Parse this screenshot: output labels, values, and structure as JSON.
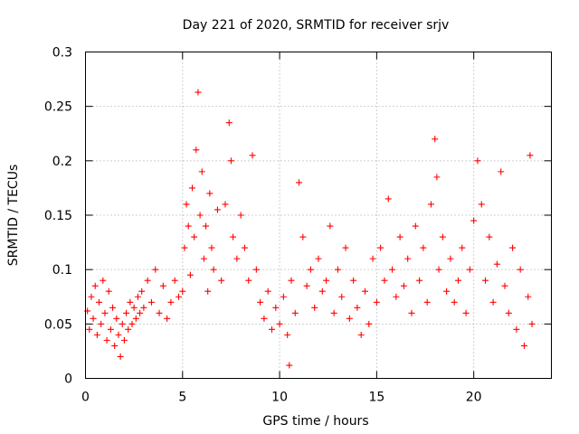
{
  "chart_data": {
    "type": "scatter",
    "title": "Day 221 of 2020, SRMTID for receiver srjv",
    "xlabel": "GPS time / hours",
    "ylabel": "SRMTID / TECUs",
    "xlim": [
      0,
      24
    ],
    "ylim": [
      0,
      0.3
    ],
    "x_ticks": [
      0,
      5,
      10,
      15,
      20
    ],
    "y_ticks": [
      0,
      0.05,
      0.1,
      0.15,
      0.2,
      0.25,
      0.3
    ],
    "x_tick_labels": [
      "0",
      "5",
      "10",
      "15",
      "20"
    ],
    "y_tick_labels": [
      "0",
      "0.05",
      "0.1",
      "0.15",
      "0.2",
      "0.25",
      "0.3"
    ],
    "grid": true,
    "legend": false,
    "marker": "plus",
    "color": "#ff0000",
    "series": [
      {
        "points": [
          [
            0.1,
            0.062
          ],
          [
            0.2,
            0.045
          ],
          [
            0.3,
            0.075
          ],
          [
            0.4,
            0.055
          ],
          [
            0.5,
            0.085
          ],
          [
            0.6,
            0.04
          ],
          [
            0.7,
            0.07
          ],
          [
            0.8,
            0.05
          ],
          [
            0.9,
            0.09
          ],
          [
            1.0,
            0.06
          ],
          [
            1.1,
            0.035
          ],
          [
            1.2,
            0.08
          ],
          [
            1.3,
            0.045
          ],
          [
            1.4,
            0.065
          ],
          [
            1.5,
            0.03
          ],
          [
            1.6,
            0.055
          ],
          [
            1.7,
            0.04
          ],
          [
            1.8,
            0.02
          ],
          [
            1.9,
            0.05
          ],
          [
            2.0,
            0.035
          ],
          [
            2.1,
            0.06
          ],
          [
            2.2,
            0.045
          ],
          [
            2.3,
            0.07
          ],
          [
            2.4,
            0.05
          ],
          [
            2.5,
            0.065
          ],
          [
            2.6,
            0.055
          ],
          [
            2.7,
            0.075
          ],
          [
            2.8,
            0.06
          ],
          [
            2.9,
            0.08
          ],
          [
            3.0,
            0.065
          ],
          [
            3.2,
            0.09
          ],
          [
            3.4,
            0.07
          ],
          [
            3.6,
            0.1
          ],
          [
            3.8,
            0.06
          ],
          [
            4.0,
            0.085
          ],
          [
            4.2,
            0.055
          ],
          [
            4.4,
            0.07
          ],
          [
            4.6,
            0.09
          ],
          [
            4.8,
            0.075
          ],
          [
            5.0,
            0.08
          ],
          [
            5.1,
            0.12
          ],
          [
            5.2,
            0.16
          ],
          [
            5.3,
            0.14
          ],
          [
            5.4,
            0.095
          ],
          [
            5.5,
            0.175
          ],
          [
            5.6,
            0.13
          ],
          [
            5.7,
            0.21
          ],
          [
            5.8,
            0.263
          ],
          [
            5.9,
            0.15
          ],
          [
            6.0,
            0.19
          ],
          [
            6.1,
            0.11
          ],
          [
            6.2,
            0.14
          ],
          [
            6.3,
            0.08
          ],
          [
            6.4,
            0.17
          ],
          [
            6.5,
            0.12
          ],
          [
            6.6,
            0.1
          ],
          [
            6.8,
            0.155
          ],
          [
            7.0,
            0.09
          ],
          [
            7.2,
            0.16
          ],
          [
            7.4,
            0.235
          ],
          [
            7.5,
            0.2
          ],
          [
            7.6,
            0.13
          ],
          [
            7.8,
            0.11
          ],
          [
            8.0,
            0.15
          ],
          [
            8.2,
            0.12
          ],
          [
            8.4,
            0.09
          ],
          [
            8.6,
            0.205
          ],
          [
            8.8,
            0.1
          ],
          [
            9.0,
            0.07
          ],
          [
            9.2,
            0.055
          ],
          [
            9.4,
            0.08
          ],
          [
            9.6,
            0.045
          ],
          [
            9.8,
            0.065
          ],
          [
            10.0,
            0.05
          ],
          [
            10.2,
            0.075
          ],
          [
            10.4,
            0.04
          ],
          [
            10.5,
            0.012
          ],
          [
            10.6,
            0.09
          ],
          [
            10.8,
            0.06
          ],
          [
            11.0,
            0.18
          ],
          [
            11.2,
            0.13
          ],
          [
            11.4,
            0.085
          ],
          [
            11.6,
            0.1
          ],
          [
            11.8,
            0.065
          ],
          [
            12.0,
            0.11
          ],
          [
            12.2,
            0.08
          ],
          [
            12.4,
            0.09
          ],
          [
            12.6,
            0.14
          ],
          [
            12.8,
            0.06
          ],
          [
            13.0,
            0.1
          ],
          [
            13.2,
            0.075
          ],
          [
            13.4,
            0.12
          ],
          [
            13.6,
            0.055
          ],
          [
            13.8,
            0.09
          ],
          [
            14.0,
            0.065
          ],
          [
            14.2,
            0.04
          ],
          [
            14.4,
            0.08
          ],
          [
            14.6,
            0.05
          ],
          [
            14.8,
            0.11
          ],
          [
            15.0,
            0.07
          ],
          [
            15.2,
            0.12
          ],
          [
            15.4,
            0.09
          ],
          [
            15.6,
            0.165
          ],
          [
            15.8,
            0.1
          ],
          [
            16.0,
            0.075
          ],
          [
            16.2,
            0.13
          ],
          [
            16.4,
            0.085
          ],
          [
            16.6,
            0.11
          ],
          [
            16.8,
            0.06
          ],
          [
            17.0,
            0.14
          ],
          [
            17.2,
            0.09
          ],
          [
            17.4,
            0.12
          ],
          [
            17.6,
            0.07
          ],
          [
            17.8,
            0.16
          ],
          [
            18.0,
            0.22
          ],
          [
            18.1,
            0.185
          ],
          [
            18.2,
            0.1
          ],
          [
            18.4,
            0.13
          ],
          [
            18.6,
            0.08
          ],
          [
            18.8,
            0.11
          ],
          [
            19.0,
            0.07
          ],
          [
            19.2,
            0.09
          ],
          [
            19.4,
            0.12
          ],
          [
            19.6,
            0.06
          ],
          [
            19.8,
            0.1
          ],
          [
            20.0,
            0.145
          ],
          [
            20.2,
            0.2
          ],
          [
            20.4,
            0.16
          ],
          [
            20.6,
            0.09
          ],
          [
            20.8,
            0.13
          ],
          [
            21.0,
            0.07
          ],
          [
            21.2,
            0.105
          ],
          [
            21.4,
            0.19
          ],
          [
            21.6,
            0.085
          ],
          [
            21.8,
            0.06
          ],
          [
            22.0,
            0.12
          ],
          [
            22.2,
            0.045
          ],
          [
            22.4,
            0.1
          ],
          [
            22.6,
            0.03
          ],
          [
            22.8,
            0.075
          ],
          [
            22.9,
            0.205
          ],
          [
            23.0,
            0.05
          ]
        ]
      }
    ]
  }
}
